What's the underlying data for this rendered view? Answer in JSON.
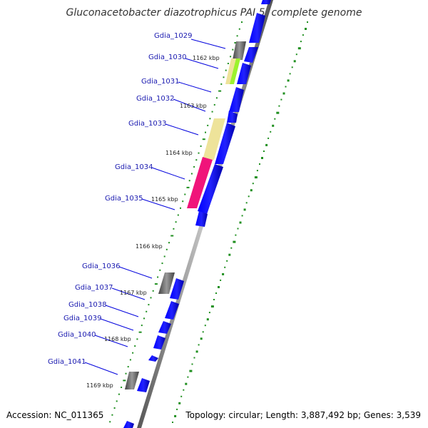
{
  "title": "Gluconacetobacter diazotrophicus PAI 5, complete genome",
  "footer": {
    "accession": "Accession: NC_011365",
    "stats": "Topology: circular; Length: 3,887,492 bp; Genes: 3,539"
  },
  "genes": [
    {
      "name": "Gdia_1029"
    },
    {
      "name": "Gdia_1030"
    },
    {
      "name": "Gdia_1031"
    },
    {
      "name": "Gdia_1032"
    },
    {
      "name": "Gdia_1033"
    },
    {
      "name": "Gdia_1034"
    },
    {
      "name": "Gdia_1035"
    },
    {
      "name": "Gdia_1036"
    },
    {
      "name": "Gdia_1037"
    },
    {
      "name": "Gdia_1038"
    },
    {
      "name": "Gdia_1039"
    },
    {
      "name": "Gdia_1040"
    },
    {
      "name": "Gdia_1041"
    }
  ],
  "kbp_marks": [
    "1162 kbp",
    "1163 kbp",
    "1164 kbp",
    "1165 kbp",
    "1166 kbp",
    "1167 kbp",
    "1168 kbp",
    "1169 kbp"
  ],
  "colors": {
    "forward_gene": "#0000ee",
    "backbone": "#808080",
    "gc_track": "#1f8f1f",
    "rrna_like": "#666666",
    "khaki_feature": "#eee39a",
    "green_feature": "#9cf22e",
    "magenta_feature": "#f0147a",
    "label_text": "#1a1ab0"
  }
}
